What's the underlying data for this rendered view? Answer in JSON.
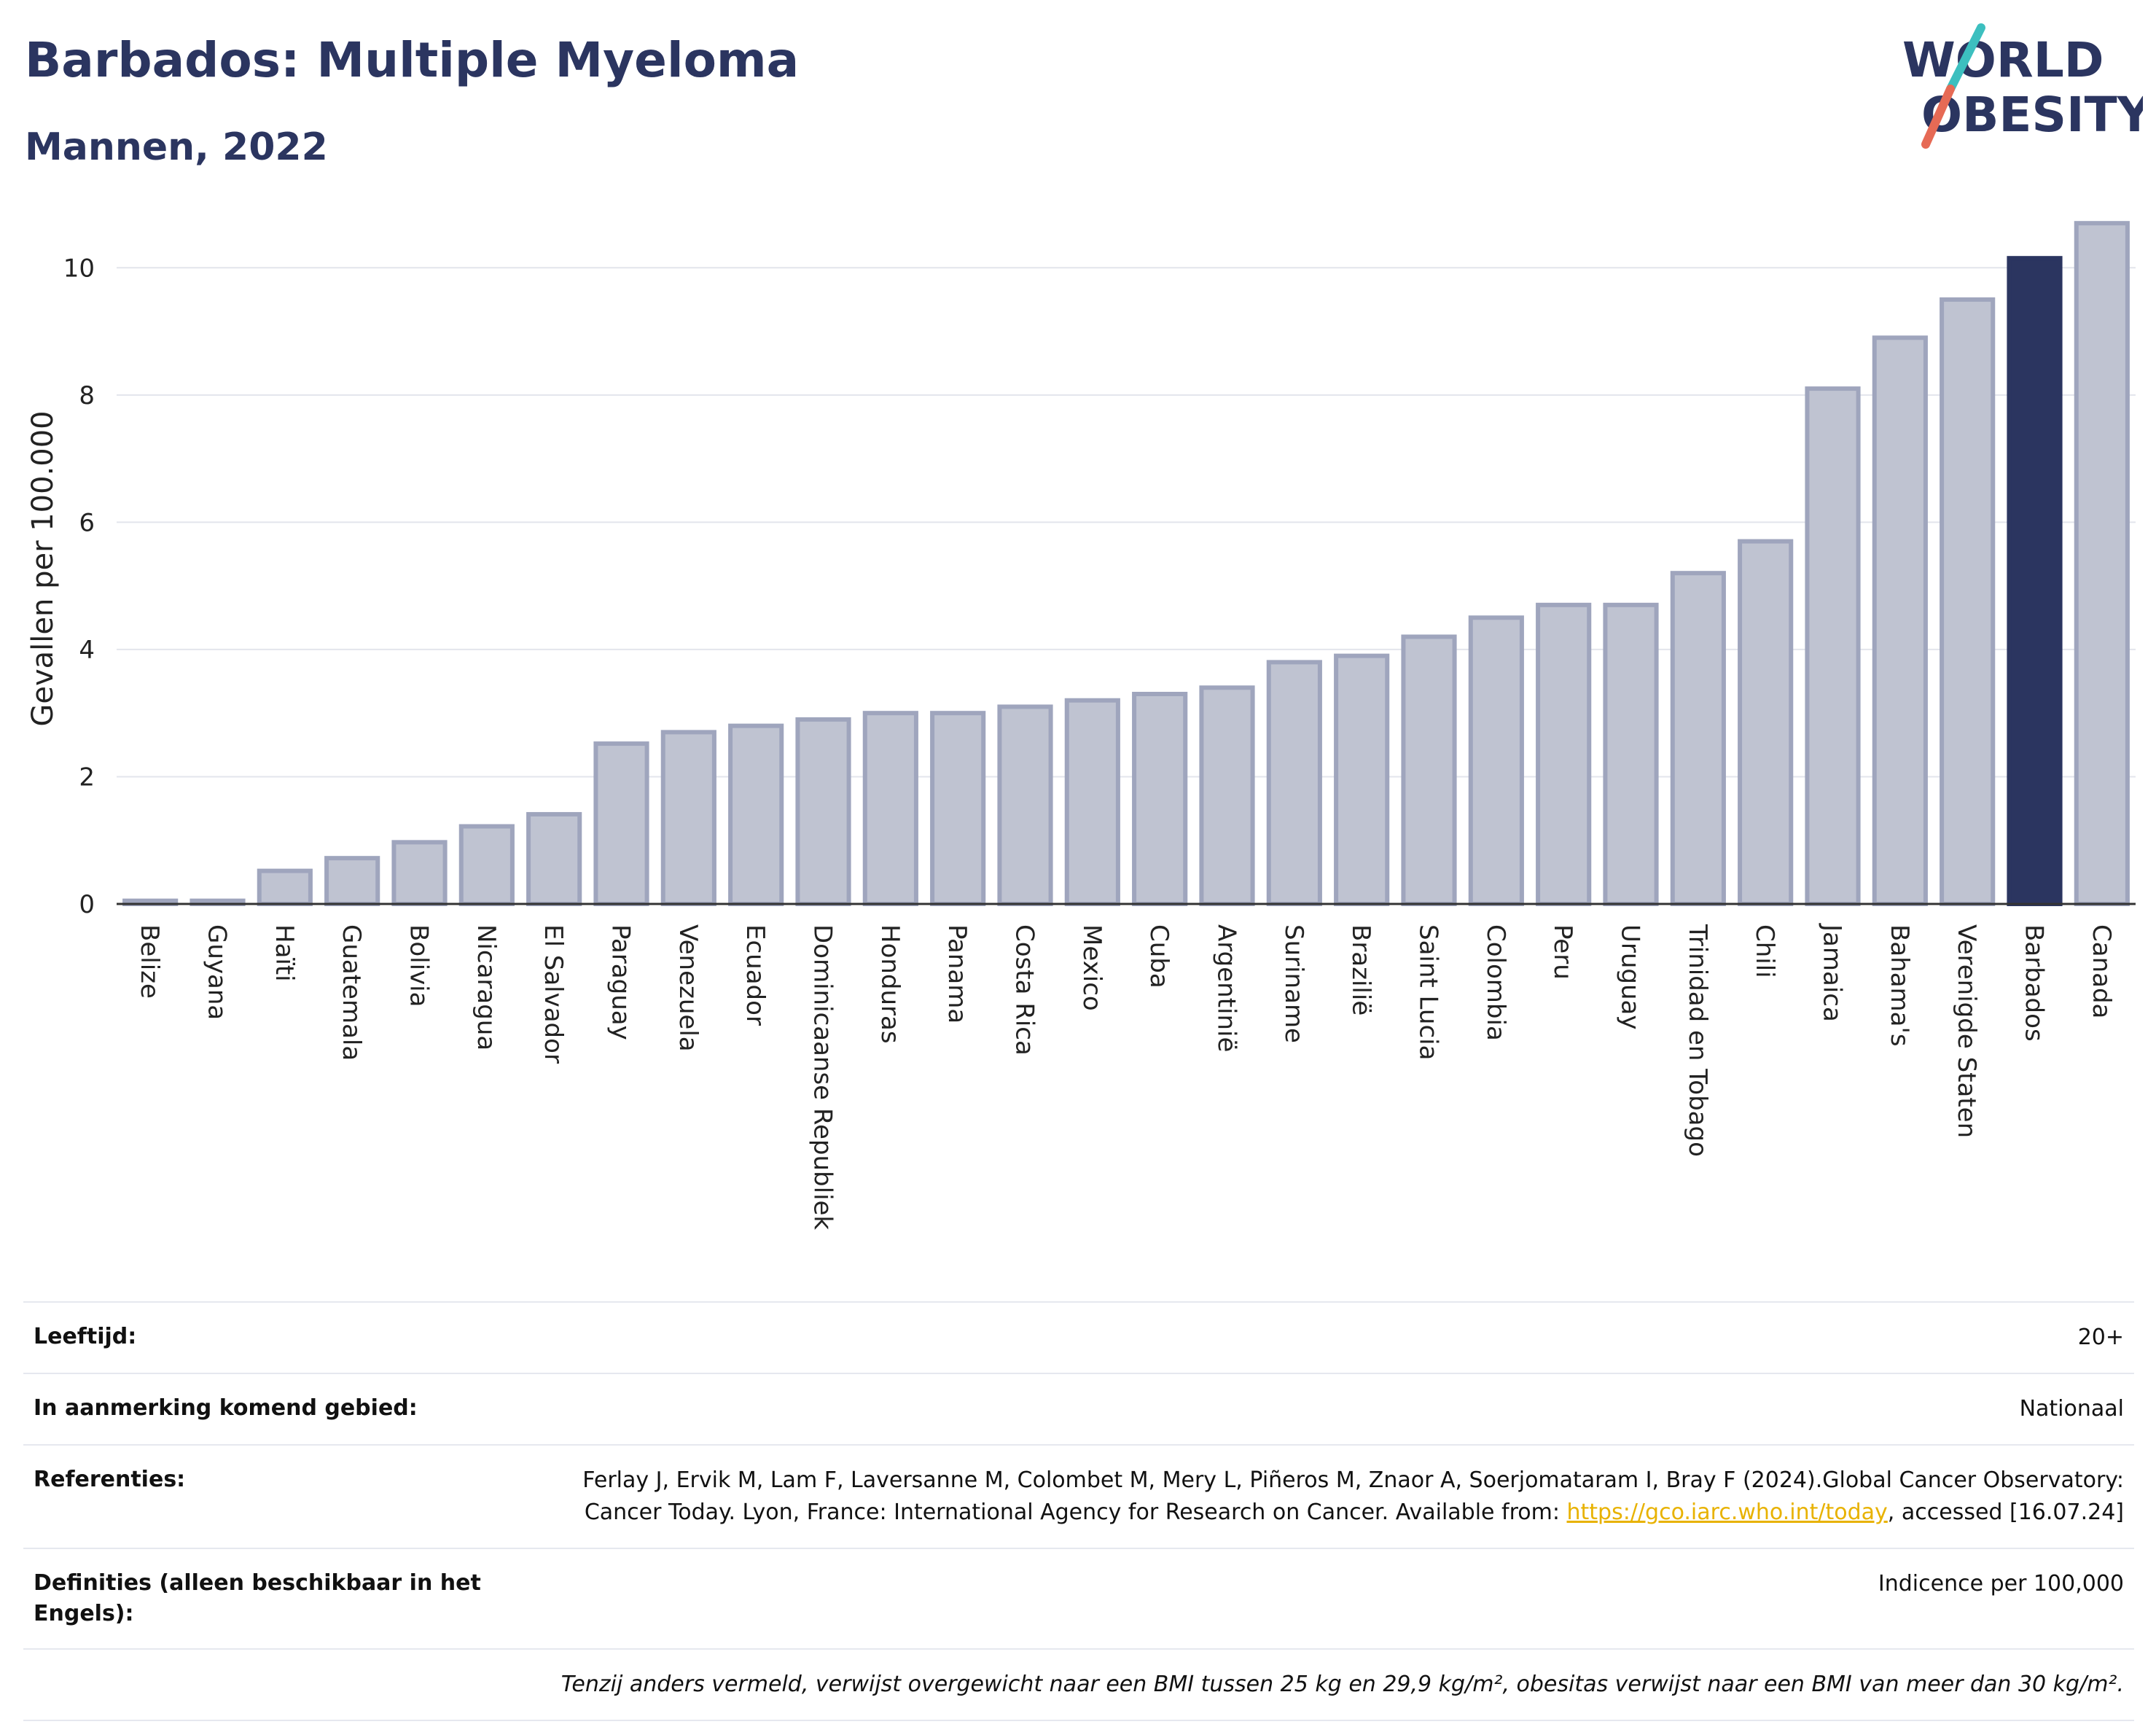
{
  "header": {
    "title": "Barbados: Multiple Myeloma",
    "subtitle": "Mannen, 2022",
    "logo_line1": "WORLD",
    "logo_line2": "OBESITY"
  },
  "chart_data": {
    "type": "bar",
    "title": "Barbados: Multiple Myeloma",
    "subtitle": "Mannen, 2022",
    "ylabel": "Gevallen per 100.000",
    "xlabel": "",
    "ylim": [
      0,
      11
    ],
    "yticks": [
      0,
      2,
      4,
      6,
      8,
      10
    ],
    "grid": true,
    "highlight": "Barbados",
    "colors": {
      "bar": "#bfc3d1",
      "bar_edge": "#9fa5bd",
      "highlight": "#2b3560"
    },
    "categories": [
      "Belize",
      "Guyana",
      "Haïti",
      "Guatemala",
      "Bolivia",
      "Nicaragua",
      "El Salvador",
      "Paraguay",
      "Venezuela",
      "Ecuador",
      "Dominicaanse Republiek",
      "Honduras",
      "Panama",
      "Costa Rica",
      "Mexico",
      "Cuba",
      "Argentinië",
      "Suriname",
      "Brazilië",
      "Saint Lucia",
      "Colombia",
      "Peru",
      "Uruguay",
      "Trinidad en Tobago",
      "Chili",
      "Jamaica",
      "Bahama's",
      "Verenigde Staten",
      "Barbados",
      "Canada"
    ],
    "values": [
      0.05,
      0.05,
      0.52,
      0.72,
      0.97,
      1.22,
      1.41,
      2.52,
      2.7,
      2.8,
      2.9,
      3.0,
      3.0,
      3.1,
      3.2,
      3.3,
      3.4,
      3.8,
      3.9,
      4.2,
      4.5,
      4.7,
      4.7,
      5.2,
      5.7,
      8.1,
      8.9,
      9.5,
      10.15,
      10.7
    ]
  },
  "info": {
    "age_label": "Leeftijd:",
    "age_value": "20+",
    "area_label": "In aanmerking komend gebied:",
    "area_value": "Nationaal",
    "ref_label": "Referenties:",
    "ref_text1": "Ferlay J, Ervik M, Lam F, Laversanne M, Colombet M, Mery L, Piñeros M, Znaor A, Soerjomataram I, Bray F (2024).Global Cancer Observatory: Cancer Today. Lyon, France: International Agency for Research on Cancer. Available from: ",
    "ref_link": "https://gco.iarc.who.int/today",
    "ref_text2": ", accessed [16.07.24]",
    "def_label": "Definities (alleen beschikbaar in het Engels):",
    "def_value": "Indicence per 100,000",
    "note": "Tenzij anders vermeld, verwijst overgewicht naar een BMI tussen 25 kg en 29,9 kg/m², obesitas verwijst naar een BMI van meer dan 30 kg/m²."
  }
}
